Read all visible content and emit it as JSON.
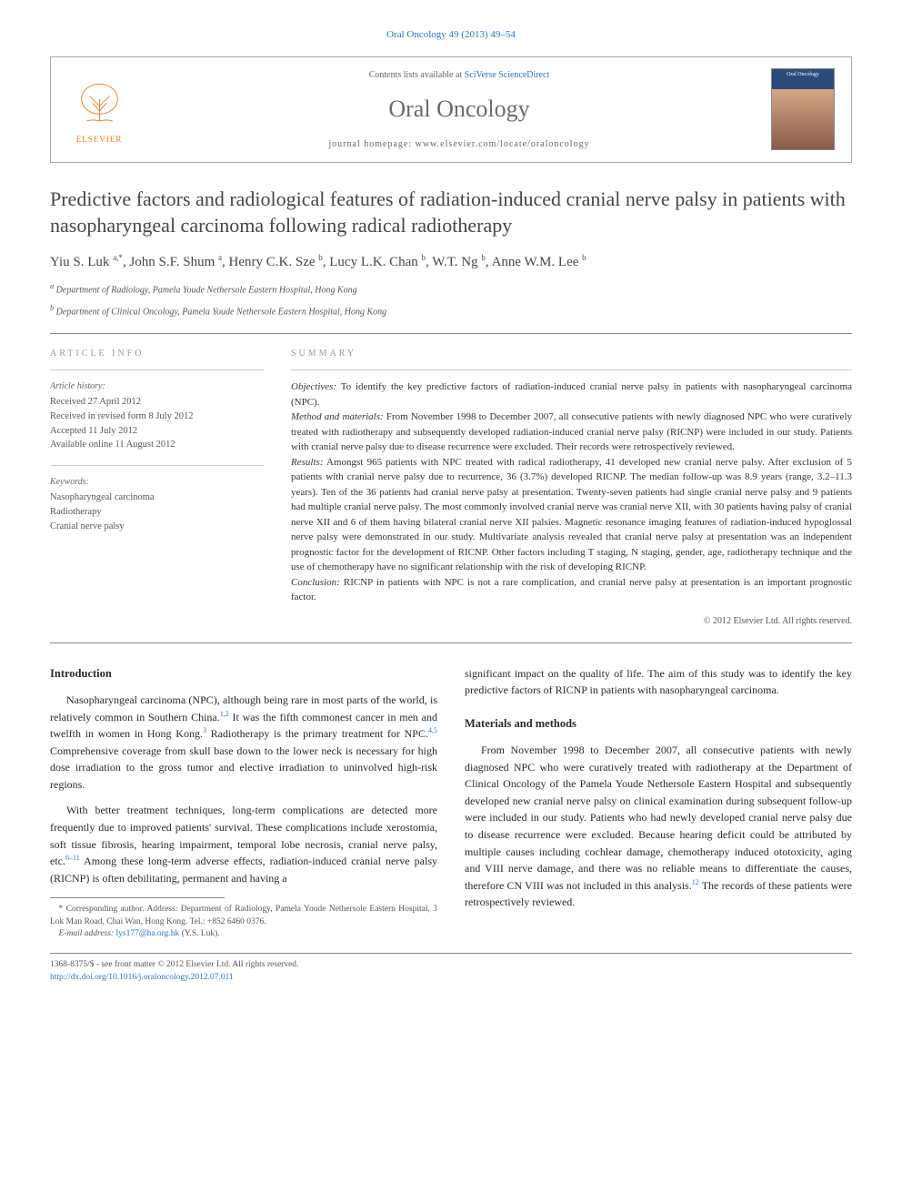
{
  "journal_ref": {
    "name": "Oral Oncology",
    "vol": "49 (2013) 49–54"
  },
  "masthead": {
    "contents_prefix": "Contents lists available at ",
    "contents_link": "SciVerse ScienceDirect",
    "journal_name": "Oral Oncology",
    "homepage_prefix": "journal homepage: ",
    "homepage_url": "www.elsevier.com/locate/oraloncology",
    "publisher_label": "ELSEVIER",
    "cover_title": "Oral Oncology"
  },
  "article": {
    "title": "Predictive factors and radiological features of radiation-induced cranial nerve palsy in patients with nasopharyngeal carcinoma following radical radiotherapy",
    "authors_html": "Yiu S. Luk <sup>a,*</sup>, John S.F. Shum <sup>a</sup>, Henry C.K. Sze <sup>b</sup>, Lucy L.K. Chan <sup>b</sup>, W.T. Ng <sup>b</sup>, Anne W.M. Lee <sup>b</sup>",
    "affiliations": [
      {
        "label": "a",
        "text": "Department of Radiology, Pamela Youde Nethersole Eastern Hospital, Hong Kong"
      },
      {
        "label": "b",
        "text": "Department of Clinical Oncology, Pamela Youde Nethersole Eastern Hospital, Hong Kong"
      }
    ]
  },
  "info": {
    "section_label": "ARTICLE INFO",
    "history_title": "Article history:",
    "history": [
      "Received 27 April 2012",
      "Received in revised form 8 July 2012",
      "Accepted 11 July 2012",
      "Available online 11 August 2012"
    ],
    "keywords_title": "Keywords:",
    "keywords": [
      "Nasopharyngeal carcinoma",
      "Radiotherapy",
      "Cranial nerve palsy"
    ]
  },
  "summary": {
    "section_label": "SUMMARY",
    "objectives_label": "Objectives:",
    "objectives": "To identify the key predictive factors of radiation-induced cranial nerve palsy in patients with nasopharyngeal carcinoma (NPC).",
    "methods_label": "Method and materials:",
    "methods": "From November 1998 to December 2007, all consecutive patients with newly diagnosed NPC who were curatively treated with radiotherapy and subsequently developed radiation-induced cranial nerve palsy (RICNP) were included in our study. Patients with cranial nerve palsy due to disease recurrence were excluded. Their records were retrospectively reviewed.",
    "results_label": "Results:",
    "results": "Amongst 965 patients with NPC treated with radical radiotherapy, 41 developed new cranial nerve palsy. After exclusion of 5 patients with cranial nerve palsy due to recurrence, 36 (3.7%) developed RICNP. The median follow-up was 8.9 years (range, 3.2–11.3 years). Ten of the 36 patients had cranial nerve palsy at presentation. Twenty-seven patients had single cranial nerve palsy and 9 patients had multiple cranial nerve palsy. The most commonly involved cranial nerve was cranial nerve XII, with 30 patients having palsy of cranial nerve XII and 6 of them having bilateral cranial nerve XII palsies. Magnetic resonance imaging features of radiation-induced hypoglossal nerve palsy were demonstrated in our study. Multivariate analysis revealed that cranial nerve palsy at presentation was an independent prognostic factor for the development of RICNP. Other factors including T staging, N staging, gender, age, radiotherapy technique and the use of chemotherapy have no significant relationship with the risk of developing RICNP.",
    "conclusion_label": "Conclusion:",
    "conclusion": "RICNP in patients with NPC is not a rare complication, and cranial nerve palsy at presentation is an important prognostic factor.",
    "copyright": "© 2012 Elsevier Ltd. All rights reserved."
  },
  "body": {
    "intro_heading": "Introduction",
    "intro_p1": "Nasopharyngeal carcinoma (NPC), although being rare in most parts of the world, is relatively common in Southern China.<sup class=\"ref\">1,2</sup> It was the fifth commonest cancer in men and twelfth in women in Hong Kong.<sup class=\"ref\">3</sup> Radiotherapy is the primary treatment for NPC.<sup class=\"ref\">4,5</sup> Comprehensive coverage from skull base down to the lower neck is necessary for high dose irradiation to the gross tumor and elective irradiation to uninvolved high-risk regions.",
    "intro_p2": "With better treatment techniques, long-term complications are detected more frequently due to improved patients' survival. These complications include xerostomia, soft tissue fibrosis, hearing impairment, temporal lobe necrosis, cranial nerve palsy, etc.<sup class=\"ref\">6–11</sup> Among these long-term adverse effects, radiation-induced cranial nerve palsy (RICNP) is often debilitating, permanent and having a",
    "intro_p3_cont": "significant impact on the quality of life. The aim of this study was to identify the key predictive factors of RICNP in patients with nasopharyngeal carcinoma.",
    "methods_heading": "Materials and methods",
    "methods_p1": "From November 1998 to December 2007, all consecutive patients with newly diagnosed NPC who were curatively treated with radiotherapy at the Department of Clinical Oncology of the Pamela Youde Nethersole Eastern Hospital and subsequently developed new cranial nerve palsy on clinical examination during subsequent follow-up were included in our study. Patients who had newly developed cranial nerve palsy due to disease recurrence were excluded. Because hearing deficit could be attributed by multiple causes including cochlear damage, chemotherapy induced ototoxicity, aging and VIII nerve damage, and there was no reliable means to differentiate the causes, therefore CN VIII was not included in this analysis.<sup class=\"ref\">12</sup> The records of these patients were retrospectively reviewed."
  },
  "footnote": {
    "corr_label": "* Corresponding author.",
    "corr_text": "Address: Department of Radiology, Pamela Youde Nethersole Eastern Hospital, 3 Lok Man Road, Chai Wan, Hong Kong. Tel.: +852 6460 0376.",
    "email_label": "E-mail address:",
    "email": "lys177@ha.org.hk",
    "email_suffix": "(Y.S. Luk)."
  },
  "footer": {
    "issn": "1368-8375/$ - see front matter © 2012 Elsevier Ltd. All rights reserved.",
    "doi": "http://dx.doi.org/10.1016/j.oraloncology.2012.07.011"
  },
  "colors": {
    "link": "#2b72c2",
    "publisher": "#e67817",
    "text": "#333333",
    "muted": "#666666",
    "border": "#aaaaaa"
  }
}
